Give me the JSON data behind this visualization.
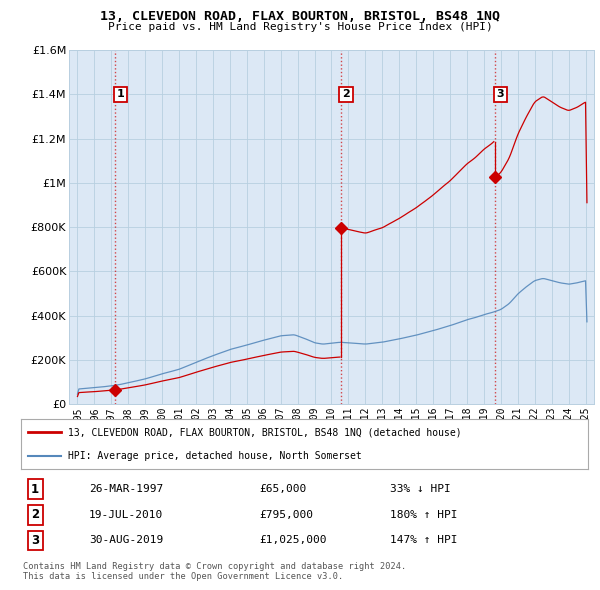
{
  "title": "13, CLEVEDON ROAD, FLAX BOURTON, BRISTOL, BS48 1NQ",
  "subtitle": "Price paid vs. HM Land Registry's House Price Index (HPI)",
  "ylim": [
    0,
    1600000
  ],
  "xlim": [
    1994.5,
    2025.5
  ],
  "yticks": [
    0,
    200000,
    400000,
    600000,
    800000,
    1000000,
    1200000,
    1400000,
    1600000
  ],
  "ytick_labels": [
    "£0",
    "£200K",
    "£400K",
    "£600K",
    "£800K",
    "£1M",
    "£1.2M",
    "£1.4M",
    "£1.6M"
  ],
  "xticks": [
    1995,
    1996,
    1997,
    1998,
    1999,
    2000,
    2001,
    2002,
    2003,
    2004,
    2005,
    2006,
    2007,
    2008,
    2009,
    2010,
    2011,
    2012,
    2013,
    2014,
    2015,
    2016,
    2017,
    2018,
    2019,
    2020,
    2021,
    2022,
    2023,
    2024,
    2025
  ],
  "sale_events": [
    {
      "num": 1,
      "year": 1997.23,
      "price": 65000,
      "label": "26-MAR-1997",
      "price_str": "£65,000",
      "pct": "33% ↓ HPI"
    },
    {
      "num": 2,
      "year": 2010.55,
      "price": 795000,
      "label": "19-JUL-2010",
      "price_str": "£795,000",
      "pct": "180% ↑ HPI"
    },
    {
      "num": 3,
      "year": 2019.66,
      "price": 1025000,
      "label": "30-AUG-2019",
      "price_str": "£1,025,000",
      "pct": "147% ↑ HPI"
    }
  ],
  "legend_line1": "13, CLEVEDON ROAD, FLAX BOURTON, BRISTOL, BS48 1NQ (detached house)",
  "legend_line2": "HPI: Average price, detached house, North Somerset",
  "red_color": "#cc0000",
  "blue_color": "#5588bb",
  "bg_color": "#dce8f5",
  "plot_bg": "#dce8f5",
  "grid_color": "#b8cfe0",
  "footnote1": "Contains HM Land Registry data © Crown copyright and database right 2024.",
  "footnote2": "This data is licensed under the Open Government Licence v3.0."
}
